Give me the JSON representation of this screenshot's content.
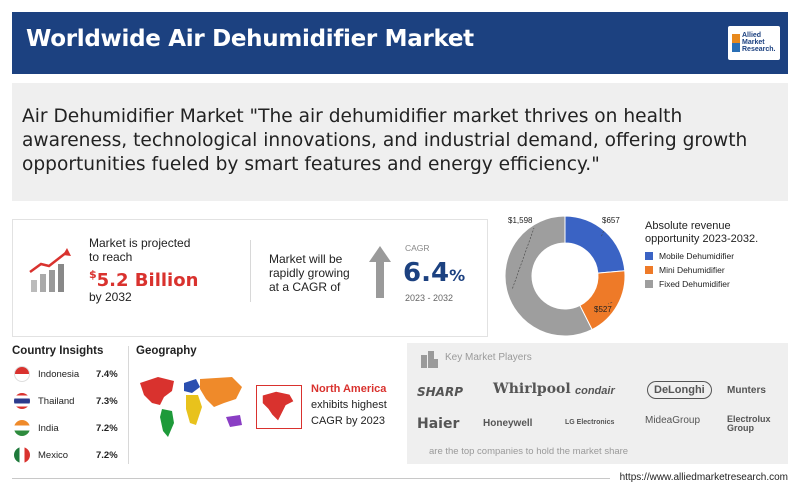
{
  "header": {
    "title": "Worldwide Air Dehumidifier Market",
    "logo_text": [
      "Allied",
      "Market",
      "Research."
    ]
  },
  "quote": {
    "text": "Air Dehumidifier Market  \"The air dehumidifier market thrives on health awareness, technological innovations, and industrial demand, offering growth opportunities fueled by smart features and energy efficiency.\""
  },
  "stats": {
    "projected_pre": "Market is projected to reach",
    "projected_currency": "$",
    "projected_value": "5.2 Billion",
    "projected_post": "by 2032",
    "growing_text": "Market will be rapidly growing at a CAGR of",
    "cagr_label": "CAGR",
    "cagr_value": "6.4",
    "cagr_unit": "%",
    "cagr_years": "2023 - 2032"
  },
  "revenue": {
    "title": "Absolute revenue opportunity 2023-2032.",
    "chart_data": {
      "type": "pie",
      "title": "Absolute revenue opportunity 2023-2032.",
      "categories": [
        "Mobile Dehumidifier",
        "Mini Dehumidifier",
        "Fixed Dehumidifier"
      ],
      "values": [
        657,
        527,
        1598
      ],
      "value_labels": [
        "$657",
        "$527",
        "$1,598"
      ],
      "colors": [
        "#3a63c4",
        "#ee7a28",
        "#9e9e9e"
      ],
      "donut": true,
      "legend": "right"
    }
  },
  "countries": {
    "title": "Country Insights",
    "items": [
      {
        "name": "Indonesia",
        "value": "7.4%"
      },
      {
        "name": "Thailand",
        "value": "7.3%"
      },
      {
        "name": "India",
        "value": "7.2%"
      },
      {
        "name": "Mexico",
        "value": "7.2%"
      }
    ]
  },
  "geography": {
    "title": "Geography",
    "region": "North America",
    "text_1": "exhibits highest",
    "text_2": "CAGR by 2023"
  },
  "players": {
    "title": "Key Market Players",
    "brands": [
      "SHARP",
      "Whirlpool",
      "condair",
      "DeLonghi",
      "Munters",
      "Haier",
      "Honeywell",
      "LG Electronics",
      "MideaGroup",
      "Electrolux Group"
    ],
    "footer": "are the top companies to hold the market share"
  },
  "footer": {
    "url": "https://www.alliedmarketresearch.com"
  }
}
